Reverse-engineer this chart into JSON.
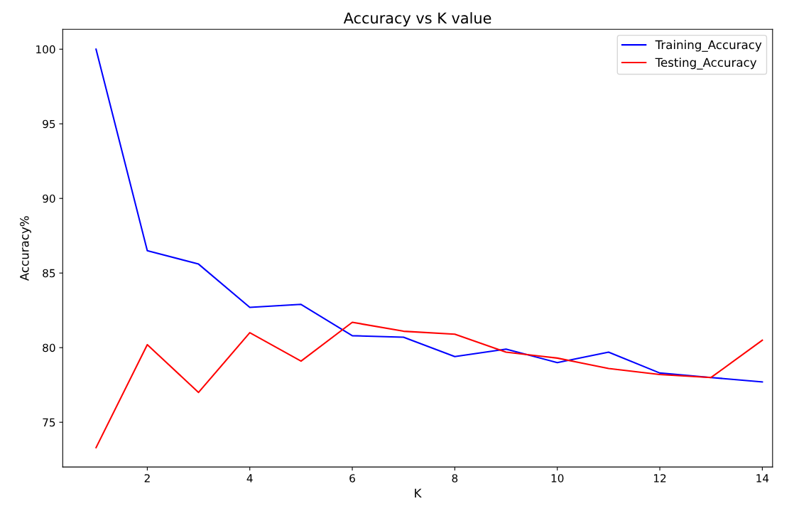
{
  "chart_data": {
    "type": "line",
    "title": "Accuracy vs K value",
    "xlabel": "K",
    "ylabel": "Accuracy%",
    "x": [
      1,
      2,
      3,
      4,
      5,
      6,
      7,
      8,
      9,
      10,
      11,
      12,
      13,
      14
    ],
    "series": [
      {
        "name": "Training_Accuracy",
        "color": "#0000ff",
        "values": [
          100,
          86.5,
          85.6,
          82.7,
          82.9,
          80.8,
          80.7,
          79.4,
          79.9,
          79.0,
          79.7,
          78.3,
          78.0,
          77.7
        ]
      },
      {
        "name": "Testing_Accuracy",
        "color": "#ff0000",
        "values": [
          73.3,
          80.2,
          77.0,
          81.0,
          79.1,
          81.7,
          81.1,
          80.9,
          79.7,
          79.3,
          78.6,
          78.2,
          78.0,
          80.5
        ]
      }
    ],
    "xlim": [
      0.35,
      14.2
    ],
    "ylim": [
      72.0,
      101.33
    ],
    "xticks": [
      2,
      4,
      6,
      8,
      10,
      12,
      14
    ],
    "yticks": [
      75,
      80,
      85,
      90,
      95,
      100
    ],
    "legend": "top right",
    "grid": false,
    "marker": "none",
    "line_style": "solid"
  }
}
